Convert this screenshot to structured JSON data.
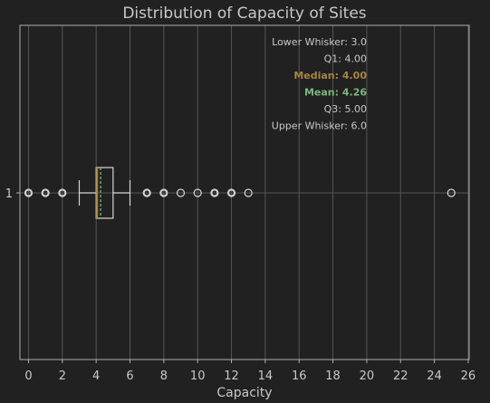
{
  "chart_data": {
    "type": "box",
    "orientation": "horizontal",
    "title": "Distribution of Capacity of Sites",
    "xlabel": "Capacity",
    "ylabel": "",
    "xlim": [
      -0.5,
      26
    ],
    "xticks": [
      0,
      2,
      4,
      6,
      8,
      10,
      12,
      14,
      16,
      18,
      20,
      22,
      24,
      26
    ],
    "yticks": [
      "1"
    ],
    "grid": true,
    "box": {
      "lower_whisker": 3.0,
      "q1": 4.0,
      "median": 4.0,
      "mean": 4.26,
      "q3": 5.0,
      "upper_whisker": 6.0
    },
    "outliers": [
      0,
      1,
      2,
      7,
      8,
      9,
      10,
      11,
      12,
      13,
      25
    ],
    "annotations": [
      {
        "key": "lower_whisker",
        "text": "Lower Whisker: 3.0",
        "color": "#c8c8c8",
        "bold": false
      },
      {
        "key": "q1",
        "text": "Q1: 4.00",
        "color": "#c8c8c8",
        "bold": false
      },
      {
        "key": "median",
        "text": "Median: 4.00",
        "color": "#a8843f",
        "bold": true
      },
      {
        "key": "mean",
        "text": "Mean:  4.26",
        "color": "#7ab87a",
        "bold": true
      },
      {
        "key": "q3",
        "text": "Q3: 5.00",
        "color": "#c8c8c8",
        "bold": false
      },
      {
        "key": "upper_whisker",
        "text": "Upper Whisker: 6.0",
        "color": "#c8c8c8",
        "bold": false
      }
    ],
    "colors": {
      "background": "#212121",
      "grid": "#555555",
      "frame": "#b0b0b0",
      "box": "#d6d6d6",
      "median": "#a8843f",
      "mean": "#7ab87a",
      "text": "#c8c8c8"
    }
  }
}
